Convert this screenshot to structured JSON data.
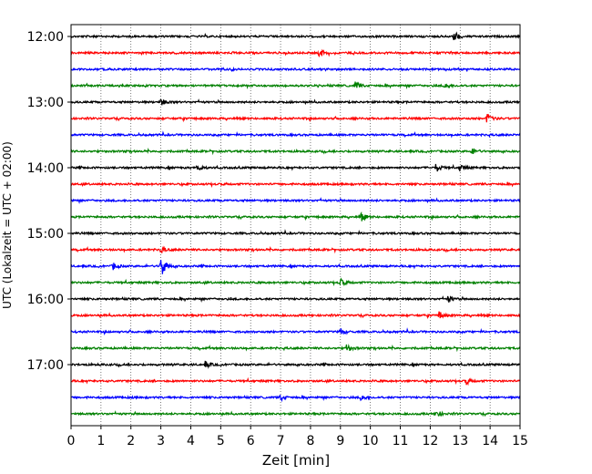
{
  "chart_data": {
    "type": "line",
    "title": "",
    "xlabel": "Zeit  [min]",
    "ylabel": "UTC (Lokalzeit = UTC + 02:00)",
    "xlim": [
      0,
      15
    ],
    "x_ticks": [
      0,
      1,
      2,
      3,
      4,
      5,
      6,
      7,
      8,
      9,
      10,
      11,
      12,
      13,
      14,
      15
    ],
    "y_tick_labels": [
      "12:00",
      "13:00",
      "14:00",
      "15:00",
      "16:00",
      "17:00"
    ],
    "grid": "vertical dotted",
    "series_colors": [
      "#000000",
      "#ff0000",
      "#0000ff",
      "#008000"
    ],
    "traces": [
      {
        "start": "12:00",
        "events": [
          {
            "t": 12.8,
            "amp": 0.5
          }
        ]
      },
      {
        "start": "12:15",
        "events": [
          {
            "t": 8.3,
            "amp": 0.45
          }
        ]
      },
      {
        "start": "12:30",
        "events": []
      },
      {
        "start": "12:45",
        "events": [
          {
            "t": 9.5,
            "amp": 0.4
          },
          {
            "t": 12.5,
            "amp": 0.35
          }
        ]
      },
      {
        "start": "13:00",
        "events": [
          {
            "t": 3.0,
            "amp": 0.35
          }
        ]
      },
      {
        "start": "13:15",
        "events": [
          {
            "t": 13.9,
            "amp": 0.5
          }
        ]
      },
      {
        "start": "13:30",
        "events": []
      },
      {
        "start": "13:45",
        "events": [
          {
            "t": 13.4,
            "amp": 0.35
          }
        ]
      },
      {
        "start": "14:00",
        "events": [
          {
            "t": 4.2,
            "amp": 0.4
          },
          {
            "t": 12.2,
            "amp": 0.4
          },
          {
            "t": 13.0,
            "amp": 0.35
          }
        ]
      },
      {
        "start": "14:15",
        "events": []
      },
      {
        "start": "14:30",
        "events": []
      },
      {
        "start": "14:45",
        "events": [
          {
            "t": 9.7,
            "amp": 0.4
          }
        ]
      },
      {
        "start": "15:00",
        "events": []
      },
      {
        "start": "15:15",
        "events": [
          {
            "t": 3.0,
            "amp": 0.3
          }
        ]
      },
      {
        "start": "15:30",
        "events": [
          {
            "t": 3.0,
            "amp": 1.2
          },
          {
            "t": 1.4,
            "amp": 0.35
          }
        ]
      },
      {
        "start": "15:45",
        "events": [
          {
            "t": 9.0,
            "amp": 0.35
          }
        ]
      },
      {
        "start": "16:00",
        "events": [
          {
            "t": 12.6,
            "amp": 0.3
          }
        ]
      },
      {
        "start": "16:15",
        "events": [
          {
            "t": 12.3,
            "amp": 0.35
          }
        ]
      },
      {
        "start": "16:30",
        "events": [
          {
            "t": 9.0,
            "amp": 0.35
          }
        ]
      },
      {
        "start": "16:45",
        "events": [
          {
            "t": 9.2,
            "amp": 0.45
          }
        ]
      },
      {
        "start": "17:00",
        "events": [
          {
            "t": 4.5,
            "amp": 0.3
          }
        ]
      },
      {
        "start": "17:15",
        "events": [
          {
            "t": 13.2,
            "amp": 0.3
          }
        ]
      },
      {
        "start": "17:30",
        "events": [
          {
            "t": 7.0,
            "amp": 0.3
          },
          {
            "t": 9.7,
            "amp": 0.35
          }
        ]
      },
      {
        "start": "17:45",
        "events": [
          {
            "t": 12.2,
            "amp": 0.35
          }
        ]
      }
    ]
  }
}
